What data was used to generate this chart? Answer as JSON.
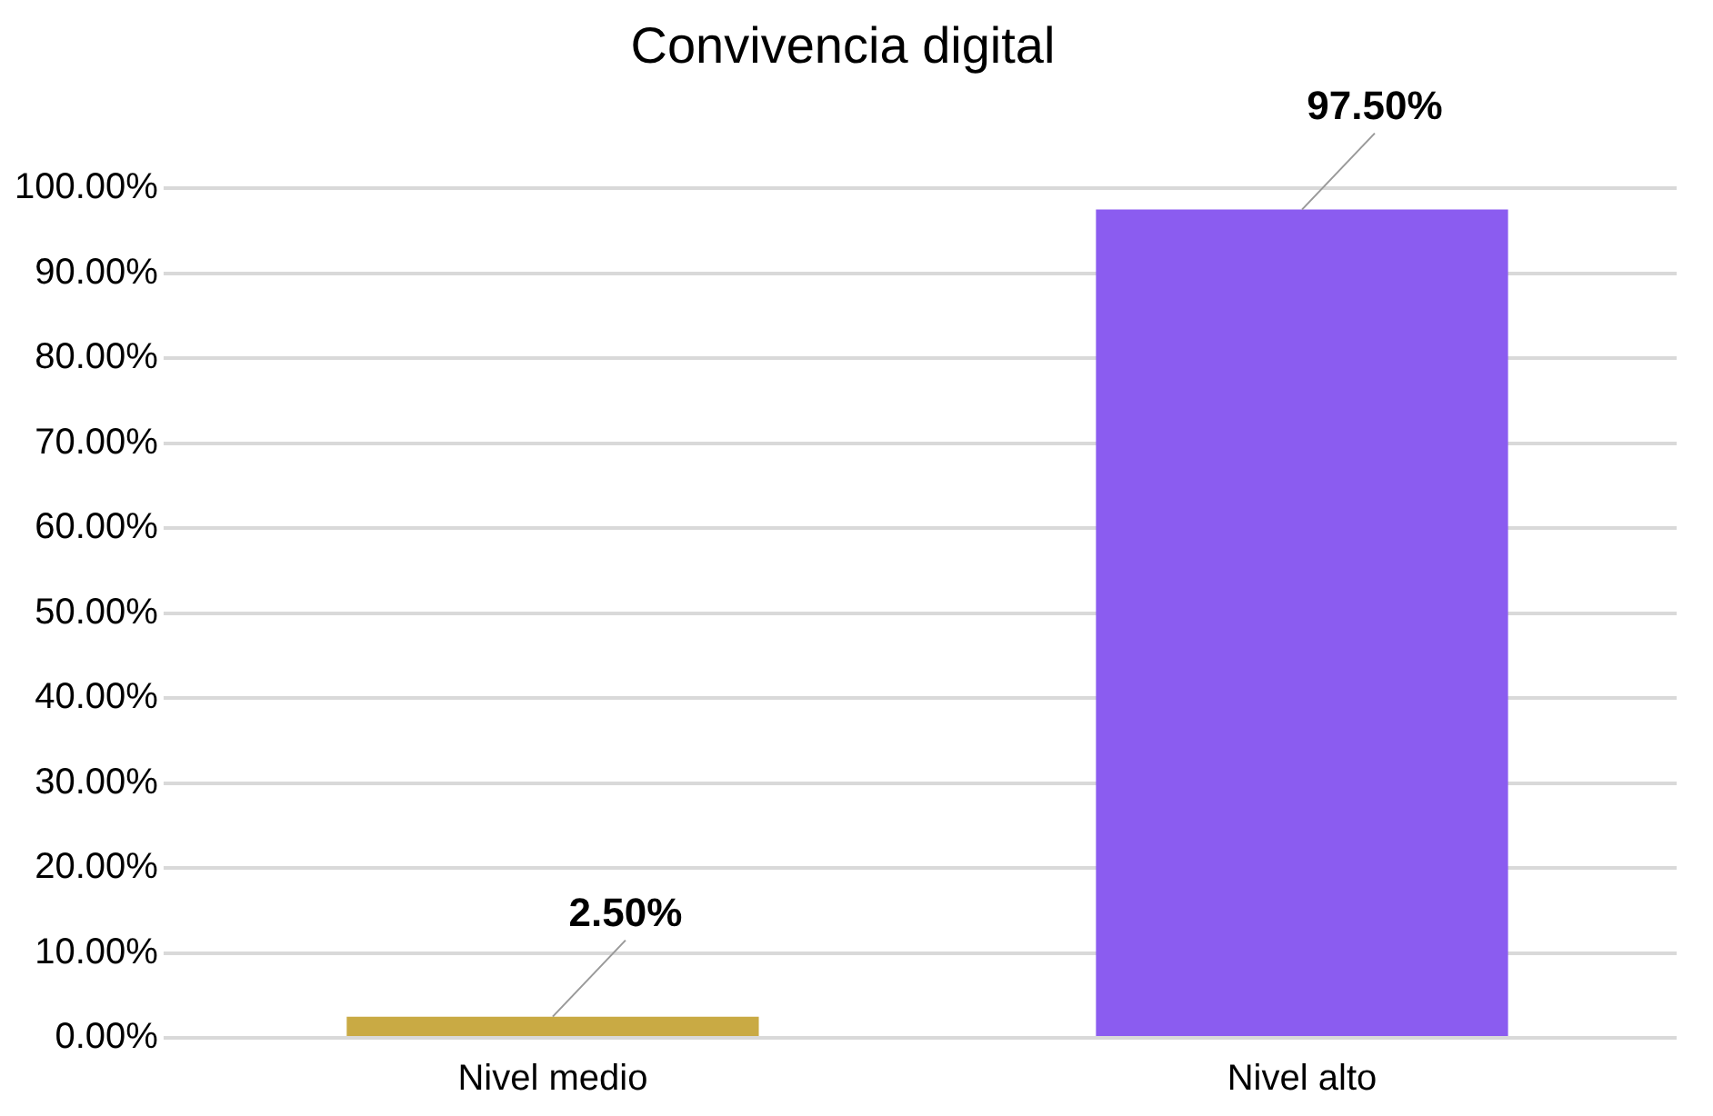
{
  "chart_data": {
    "type": "bar",
    "title": "Convivencia digital",
    "categories": [
      "Nivel medio",
      "Nivel alto"
    ],
    "values": [
      2.5,
      97.5
    ],
    "colors": [
      "#c9aa44",
      "#8b5cf0"
    ],
    "value_labels": [
      "2.50%",
      "97.50%"
    ],
    "ylim": [
      0,
      100
    ],
    "yticks": [
      {
        "value": 0,
        "label": "0.00%"
      },
      {
        "value": 10,
        "label": "10.00%"
      },
      {
        "value": 20,
        "label": "20.00%"
      },
      {
        "value": 30,
        "label": "30.00%"
      },
      {
        "value": 40,
        "label": "40.00%"
      },
      {
        "value": 50,
        "label": "50.00%"
      },
      {
        "value": 60,
        "label": "60.00%"
      },
      {
        "value": 70,
        "label": "70.00%"
      },
      {
        "value": 80,
        "label": "80.00%"
      },
      {
        "value": 90,
        "label": "90.00%"
      },
      {
        "value": 100,
        "label": "100.00%"
      }
    ],
    "grid": "y",
    "legend": false
  }
}
